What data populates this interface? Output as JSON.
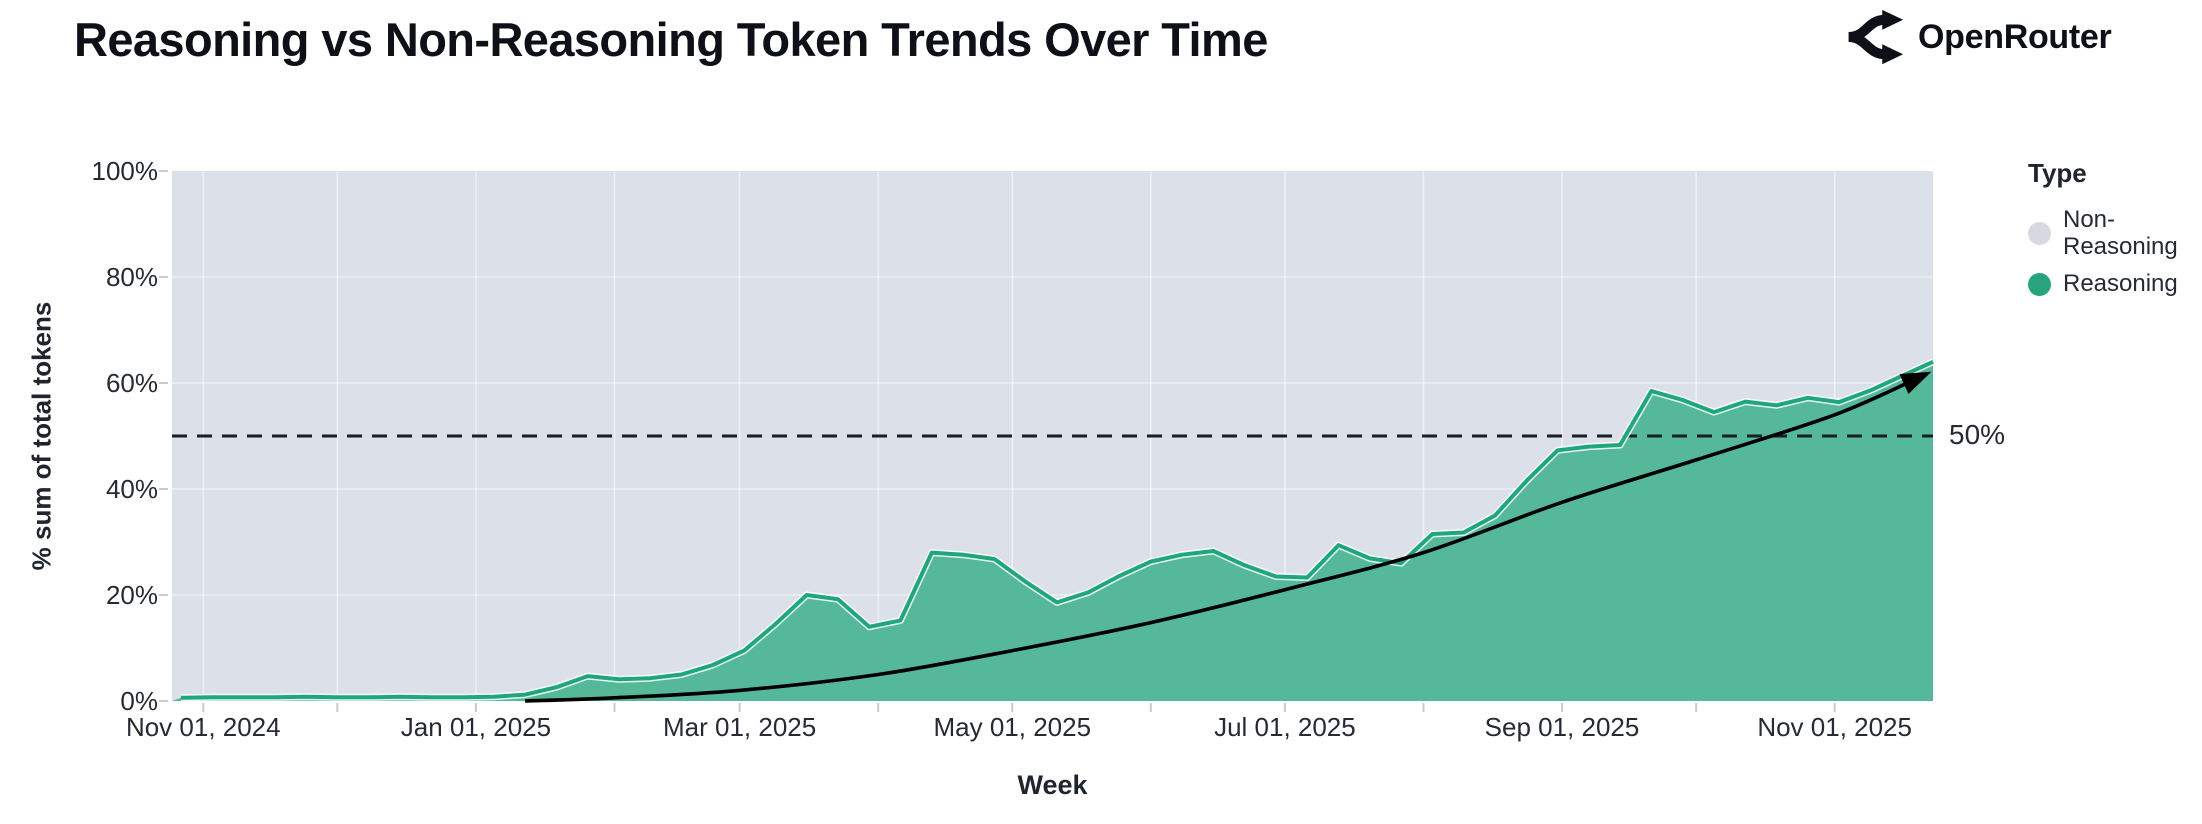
{
  "header": {
    "title": "Reasoning vs Non-Reasoning Token Trends Over Time",
    "brand": "OpenRouter"
  },
  "legend": {
    "title": "Type",
    "items": [
      {
        "label": "Non-Reasoning",
        "color": "#d6d9e0"
      },
      {
        "label": "Reasoning",
        "color": "#27a47b"
      }
    ]
  },
  "colors": {
    "plot_bg": "#dbe0e9",
    "area_fill": "#55b898",
    "area_line": "#1fa67c",
    "trend": "#000000",
    "ref_line": "#191d24",
    "tick": "#c7cbd3",
    "grid": "rgba(255,255,255,0.5)"
  },
  "chart_data": {
    "type": "area",
    "subtype": "100%-stacked",
    "title": "Reasoning vs Non-Reasoning Token Trends Over Time",
    "xlabel": "Week",
    "ylabel": "% sum of total tokens",
    "x_range": [
      "2024-10-25",
      "2025-11-23"
    ],
    "ylim": [
      0,
      100
    ],
    "grid": true,
    "legend_position": "right",
    "y_ticks": [
      {
        "value": 0,
        "label": "0%"
      },
      {
        "value": 20,
        "label": "20%"
      },
      {
        "value": 40,
        "label": "40%"
      },
      {
        "value": 60,
        "label": "60%"
      },
      {
        "value": 80,
        "label": "80%"
      },
      {
        "value": 100,
        "label": "100%"
      }
    ],
    "x_ticks_major": [
      {
        "date": "2024-11-01",
        "label": "Nov 01, 2024"
      },
      {
        "date": "2025-01-01",
        "label": "Jan 01, 2025"
      },
      {
        "date": "2025-03-01",
        "label": "Mar 01, 2025"
      },
      {
        "date": "2025-05-01",
        "label": "May 01, 2025"
      },
      {
        "date": "2025-07-01",
        "label": "Jul 01, 2025"
      },
      {
        "date": "2025-09-01",
        "label": "Sep 01, 2025"
      },
      {
        "date": "2025-11-01",
        "label": "Nov 01, 2025"
      }
    ],
    "x_ticks_minor": [
      "2024-11-01",
      "2024-12-01",
      "2025-01-01",
      "2025-02-01",
      "2025-03-01",
      "2025-04-01",
      "2025-05-01",
      "2025-06-01",
      "2025-07-01",
      "2025-08-01",
      "2025-09-01",
      "2025-10-01",
      "2025-11-01"
    ],
    "series": [
      {
        "name": "Non-Reasoning",
        "role": "remainder-to-100%",
        "color_fill": "#dbe0e9",
        "note": "value = 100 - Reasoning share"
      },
      {
        "name": "Reasoning",
        "units": "% of total tokens per week",
        "color_fill": "#55b898",
        "color_line": "#1fa67c",
        "points": [
          [
            "2024-10-27",
            0.6
          ],
          [
            "2024-11-03",
            0.7
          ],
          [
            "2024-11-10",
            0.7
          ],
          [
            "2024-11-17",
            0.7
          ],
          [
            "2024-11-24",
            0.8
          ],
          [
            "2024-12-01",
            0.7
          ],
          [
            "2024-12-08",
            0.7
          ],
          [
            "2024-12-15",
            0.8
          ],
          [
            "2024-12-22",
            0.7
          ],
          [
            "2024-12-29",
            0.7
          ],
          [
            "2025-01-05",
            0.8
          ],
          [
            "2025-01-12",
            1.2
          ],
          [
            "2025-01-19",
            2.6
          ],
          [
            "2025-01-26",
            4.7
          ],
          [
            "2025-02-02",
            4.1
          ],
          [
            "2025-02-09",
            4.3
          ],
          [
            "2025-02-16",
            5.0
          ],
          [
            "2025-02-23",
            6.8
          ],
          [
            "2025-03-02",
            9.5
          ],
          [
            "2025-03-09",
            14.5
          ],
          [
            "2025-03-16",
            20.0
          ],
          [
            "2025-03-23",
            19.2
          ],
          [
            "2025-03-30",
            14.0
          ],
          [
            "2025-04-06",
            15.2
          ],
          [
            "2025-04-13",
            28.0
          ],
          [
            "2025-04-20",
            27.6
          ],
          [
            "2025-04-27",
            26.8
          ],
          [
            "2025-05-04",
            22.5
          ],
          [
            "2025-05-11",
            18.6
          ],
          [
            "2025-05-18",
            20.5
          ],
          [
            "2025-05-25",
            23.6
          ],
          [
            "2025-06-01",
            26.3
          ],
          [
            "2025-06-08",
            27.6
          ],
          [
            "2025-06-15",
            28.3
          ],
          [
            "2025-06-22",
            25.6
          ],
          [
            "2025-06-29",
            23.5
          ],
          [
            "2025-07-06",
            23.3
          ],
          [
            "2025-07-13",
            29.4
          ],
          [
            "2025-07-20",
            26.9
          ],
          [
            "2025-07-27",
            26.0
          ],
          [
            "2025-08-03",
            31.5
          ],
          [
            "2025-08-10",
            31.8
          ],
          [
            "2025-08-17",
            35.0
          ],
          [
            "2025-08-24",
            41.5
          ],
          [
            "2025-08-31",
            47.3
          ],
          [
            "2025-09-07",
            48.0
          ],
          [
            "2025-09-14",
            48.3
          ],
          [
            "2025-09-21",
            58.5
          ],
          [
            "2025-09-28",
            56.8
          ],
          [
            "2025-10-05",
            54.5
          ],
          [
            "2025-10-12",
            56.5
          ],
          [
            "2025-10-19",
            55.8
          ],
          [
            "2025-10-26",
            57.2
          ],
          [
            "2025-11-02",
            56.4
          ],
          [
            "2025-11-09",
            58.6
          ],
          [
            "2025-11-16",
            61.3
          ],
          [
            "2025-11-23",
            64.0
          ]
        ]
      }
    ],
    "ref_line": {
      "value": 50,
      "label": "50%",
      "style": "dashed",
      "color": "#191d24"
    },
    "trend_arrow": {
      "description": "smooth exponential-like trend curve ending in an arrowhead",
      "color": "#000000",
      "points": [
        [
          "2025-01-12",
          0
        ],
        [
          "2025-02-01",
          0.6
        ],
        [
          "2025-03-01",
          2.0
        ],
        [
          "2025-04-01",
          5.0
        ],
        [
          "2025-05-01",
          9.5
        ],
        [
          "2025-06-01",
          14.8
        ],
        [
          "2025-07-01",
          21.0
        ],
        [
          "2025-08-01",
          28.0
        ],
        [
          "2025-09-01",
          37.5
        ],
        [
          "2025-10-01",
          45.5
        ],
        [
          "2025-11-01",
          54.0
        ],
        [
          "2025-11-21",
          61.5
        ]
      ]
    }
  }
}
